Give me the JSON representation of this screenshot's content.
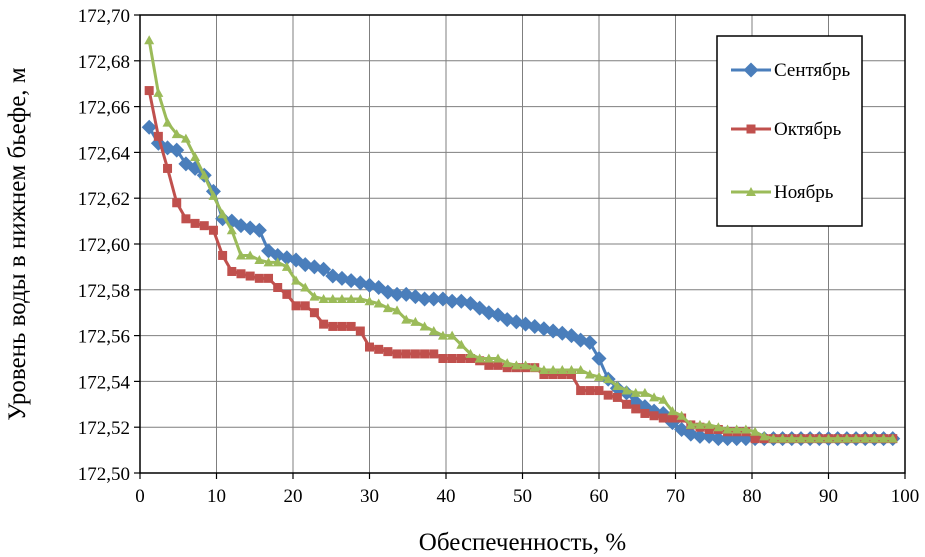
{
  "chart_data": {
    "type": "line",
    "xlabel": "Обеспеченность, %",
    "ylabel": "Уровень воды в нижнем бьефе, м",
    "xlim": [
      0,
      100
    ],
    "ylim": [
      172.5,
      172.7
    ],
    "x_ticks": [
      "0",
      "10",
      "20",
      "30",
      "40",
      "50",
      "60",
      "70",
      "80",
      "90",
      "100"
    ],
    "y_ticks": [
      "172,50",
      "172,52",
      "172,54",
      "172,56",
      "172,58",
      "172,60",
      "172,62",
      "172,64",
      "172,66",
      "172,68",
      "172,70"
    ],
    "grid": true,
    "legend_position": "top-right",
    "series": [
      {
        "name": "Сентябрь",
        "color": "#4a7ebb",
        "marker": "diamond",
        "x": [
          1.2,
          2.4,
          3.6,
          4.8,
          6.0,
          7.2,
          8.4,
          9.6,
          10.8,
          12.0,
          13.2,
          14.4,
          15.6,
          16.8,
          18.0,
          19.2,
          20.4,
          21.6,
          22.8,
          24.0,
          25.2,
          26.4,
          27.6,
          28.8,
          30.0,
          31.2,
          32.4,
          33.6,
          34.8,
          36.0,
          37.2,
          38.4,
          39.6,
          40.8,
          42.0,
          43.2,
          44.4,
          45.6,
          46.8,
          48.0,
          49.2,
          50.4,
          51.6,
          52.8,
          54.0,
          55.2,
          56.4,
          57.6,
          58.8,
          60.0,
          61.2,
          62.4,
          63.6,
          64.8,
          66.0,
          67.2,
          68.4,
          69.6,
          70.8,
          72.0,
          73.2,
          74.4,
          75.6,
          76.8,
          78.0,
          79.2,
          80.4,
          81.6,
          82.8,
          84.0,
          85.2,
          86.4,
          87.6,
          88.8,
          90.0,
          91.2,
          92.4,
          93.6,
          94.8,
          96.0,
          97.2,
          98.4
        ],
        "values": [
          172.651,
          172.644,
          172.642,
          172.641,
          172.635,
          172.633,
          172.63,
          172.623,
          172.611,
          172.61,
          172.608,
          172.607,
          172.606,
          172.597,
          172.595,
          172.594,
          172.593,
          172.591,
          172.59,
          172.589,
          172.586,
          172.585,
          172.584,
          172.583,
          172.582,
          172.581,
          172.579,
          172.578,
          172.578,
          172.577,
          172.576,
          172.576,
          172.576,
          172.575,
          172.575,
          172.574,
          172.572,
          172.57,
          172.569,
          172.567,
          172.566,
          172.565,
          172.564,
          172.563,
          172.562,
          172.561,
          172.56,
          172.558,
          172.557,
          172.55,
          172.541,
          172.537,
          172.535,
          172.531,
          172.529,
          172.527,
          172.526,
          172.522,
          172.519,
          172.517,
          172.516,
          172.516,
          172.515,
          172.515,
          172.515,
          172.515,
          172.515,
          172.515,
          172.515,
          172.515,
          172.515,
          172.515,
          172.515,
          172.515,
          172.515,
          172.515,
          172.515,
          172.515,
          172.515,
          172.515,
          172.515,
          172.515
        ]
      },
      {
        "name": "Октябрь",
        "color": "#c0504d",
        "marker": "square",
        "x": [
          1.2,
          2.4,
          3.6,
          4.8,
          6.0,
          7.2,
          8.4,
          9.6,
          10.8,
          12.0,
          13.2,
          14.4,
          15.6,
          16.8,
          18.0,
          19.2,
          20.4,
          21.6,
          22.8,
          24.0,
          25.2,
          26.4,
          27.6,
          28.8,
          30.0,
          31.2,
          32.4,
          33.6,
          34.8,
          36.0,
          37.2,
          38.4,
          39.6,
          40.8,
          42.0,
          43.2,
          44.4,
          45.6,
          46.8,
          48.0,
          49.2,
          50.4,
          51.6,
          52.8,
          54.0,
          55.2,
          56.4,
          57.6,
          58.8,
          60.0,
          61.2,
          62.4,
          63.6,
          64.8,
          66.0,
          67.2,
          68.4,
          69.6,
          70.8,
          72.0,
          73.2,
          74.4,
          75.6,
          76.8,
          78.0,
          79.2,
          80.4,
          81.6,
          82.8,
          84.0,
          85.2,
          86.4,
          87.6,
          88.8,
          90.0,
          91.2,
          92.4,
          93.6,
          94.8,
          96.0,
          97.2,
          98.4
        ],
        "values": [
          172.667,
          172.647,
          172.633,
          172.618,
          172.611,
          172.609,
          172.608,
          172.606,
          172.595,
          172.588,
          172.587,
          172.586,
          172.585,
          172.585,
          172.581,
          172.578,
          172.573,
          172.573,
          172.57,
          172.565,
          172.564,
          172.564,
          172.564,
          172.562,
          172.555,
          172.554,
          172.553,
          172.552,
          172.552,
          172.552,
          172.552,
          172.552,
          172.55,
          172.55,
          172.55,
          172.55,
          172.549,
          172.547,
          172.547,
          172.546,
          172.546,
          172.546,
          172.546,
          172.543,
          172.543,
          172.543,
          172.543,
          172.536,
          172.536,
          172.536,
          172.534,
          172.533,
          172.53,
          172.528,
          172.526,
          172.525,
          172.524,
          172.524,
          172.524,
          172.521,
          172.52,
          172.519,
          172.519,
          172.518,
          172.518,
          172.518,
          172.515,
          172.515,
          172.515,
          172.515,
          172.515,
          172.515,
          172.515,
          172.515,
          172.515,
          172.515,
          172.515,
          172.515,
          172.515,
          172.515,
          172.515,
          172.515
        ]
      },
      {
        "name": "Ноябрь",
        "color": "#9bbb59",
        "marker": "triangle",
        "x": [
          1.2,
          2.4,
          3.6,
          4.8,
          6.0,
          7.2,
          8.4,
          9.6,
          10.8,
          12.0,
          13.2,
          14.4,
          15.6,
          16.8,
          18.0,
          19.2,
          20.4,
          21.6,
          22.8,
          24.0,
          25.2,
          26.4,
          27.6,
          28.8,
          30.0,
          31.2,
          32.4,
          33.6,
          34.8,
          36.0,
          37.2,
          38.4,
          39.6,
          40.8,
          42.0,
          43.2,
          44.4,
          45.6,
          46.8,
          48.0,
          49.2,
          50.4,
          51.6,
          52.8,
          54.0,
          55.2,
          56.4,
          57.6,
          58.8,
          60.0,
          61.2,
          62.4,
          63.6,
          64.8,
          66.0,
          67.2,
          68.4,
          69.6,
          70.8,
          72.0,
          73.2,
          74.4,
          75.6,
          76.8,
          78.0,
          79.2,
          80.4,
          81.6,
          82.8,
          84.0,
          85.2,
          86.4,
          87.6,
          88.8,
          90.0,
          91.2,
          92.4,
          93.6,
          94.8,
          96.0,
          97.2,
          98.4
        ],
        "values": [
          172.689,
          172.666,
          172.653,
          172.648,
          172.646,
          172.638,
          172.63,
          172.621,
          172.613,
          172.606,
          172.595,
          172.595,
          172.593,
          172.592,
          172.592,
          172.59,
          172.584,
          172.581,
          172.577,
          172.576,
          172.576,
          172.576,
          172.576,
          172.576,
          172.575,
          172.574,
          172.572,
          172.571,
          172.567,
          172.566,
          172.564,
          172.562,
          172.56,
          172.56,
          172.556,
          172.552,
          172.55,
          172.55,
          172.55,
          172.548,
          172.547,
          172.547,
          172.546,
          172.545,
          172.545,
          172.545,
          172.545,
          172.545,
          172.543,
          172.542,
          172.541,
          172.538,
          172.536,
          172.535,
          172.535,
          172.533,
          172.532,
          172.527,
          172.525,
          172.521,
          172.521,
          172.521,
          172.52,
          172.519,
          172.519,
          172.519,
          172.518,
          172.516,
          172.515,
          172.515,
          172.515,
          172.515,
          172.515,
          172.515,
          172.515,
          172.515,
          172.515,
          172.515,
          172.515,
          172.515,
          172.515,
          172.515
        ]
      }
    ]
  }
}
